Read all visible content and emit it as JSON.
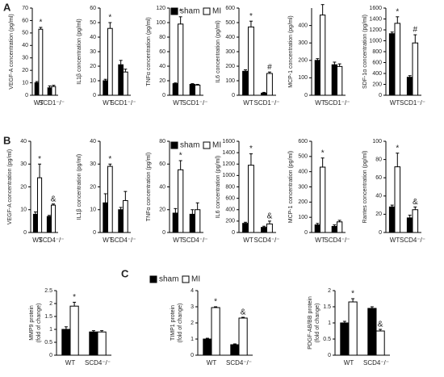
{
  "panel_labels": [
    "A",
    "B",
    "C"
  ],
  "legends": [
    [
      {
        "name": "sham",
        "color": "#000000"
      },
      {
        "name": "MI",
        "color": "#ffffff"
      }
    ],
    [
      {
        "name": "sham",
        "color": "#000000"
      },
      {
        "name": "MI",
        "color": "#ffffff"
      }
    ],
    [
      {
        "name": "sham",
        "color": "#000000"
      },
      {
        "name": "MI",
        "color": "#ffffff"
      }
    ]
  ],
  "chart_data": [
    {
      "type": "bar",
      "ylabel": [
        "VEGF-A concentration (pg/ml)"
      ],
      "categories": [
        "WT",
        "SCD1⁻/⁻"
      ],
      "ylim": [
        0,
        70
      ],
      "yticks": [
        0,
        10,
        20,
        30,
        40,
        50,
        60,
        70
      ],
      "series": [
        {
          "color": "#000000",
          "values": [
            10,
            6
          ],
          "errors": [
            1,
            1.5
          ]
        },
        {
          "color": "#ffffff",
          "values": [
            53,
            7
          ],
          "errors": [
            1.5,
            1
          ]
        }
      ],
      "annotations": [
        {
          "text": "*",
          "series": 1,
          "index": 0
        }
      ]
    },
    {
      "type": "bar",
      "ylabel": [
        "IL1β concentration (pg/ml)"
      ],
      "categories": [
        "WT",
        "SCD1⁻/⁻"
      ],
      "ylim": [
        0,
        60
      ],
      "yticks": [
        0,
        10,
        20,
        30,
        40,
        50,
        60
      ],
      "series": [
        {
          "color": "#000000",
          "values": [
            10,
            21
          ],
          "errors": [
            1,
            3
          ]
        },
        {
          "color": "#ffffff",
          "values": [
            46,
            16
          ],
          "errors": [
            4,
            2
          ]
        }
      ],
      "annotations": [
        {
          "text": "*",
          "series": 1,
          "index": 0
        }
      ]
    },
    {
      "type": "bar",
      "ylabel": [
        "TNFα concentration (pg/ml)"
      ],
      "categories": [
        "WT",
        "SCD1⁻/⁻"
      ],
      "ylim": [
        0,
        120
      ],
      "yticks": [
        0,
        20,
        40,
        60,
        80,
        100,
        120
      ],
      "series": [
        {
          "color": "#000000",
          "values": [
            16,
            15
          ],
          "errors": [
            1,
            1
          ]
        },
        {
          "color": "#ffffff",
          "values": [
            98,
            14
          ],
          "errors": [
            10,
            1
          ]
        }
      ],
      "annotations": [
        {
          "text": "*",
          "series": 1,
          "index": 0
        }
      ]
    },
    {
      "type": "bar",
      "ylabel": [
        "IL6 concentration (pg/ml)"
      ],
      "categories": [
        "WT",
        "SCD1⁻/⁻"
      ],
      "ylim": [
        0,
        600
      ],
      "yticks": [
        0,
        100,
        200,
        300,
        400,
        500,
        600
      ],
      "series": [
        {
          "color": "#000000",
          "values": [
            165,
            15
          ],
          "errors": [
            10,
            5
          ]
        },
        {
          "color": "#ffffff",
          "values": [
            470,
            150
          ],
          "errors": [
            40,
            10
          ]
        }
      ],
      "annotations": [
        {
          "text": "*",
          "series": 1,
          "index": 0
        },
        {
          "text": "#",
          "series": 1,
          "index": 1
        }
      ]
    },
    {
      "type": "bar",
      "ylabel": [
        "MCP-1 concentration (pg/ml)"
      ],
      "categories": [
        "WT",
        "SCD1⁻/⁻"
      ],
      "ylim": [
        0,
        500
      ],
      "yticks": [
        0,
        100,
        200,
        300,
        400
      ],
      "series": [
        {
          "color": "#000000",
          "values": [
            200,
            175
          ],
          "errors": [
            10,
            15
          ]
        },
        {
          "color": "#ffffff",
          "values": [
            460,
            165
          ],
          "errors": [
            60,
            15
          ]
        }
      ],
      "annotations": [
        {
          "text": "*",
          "series": 1,
          "index": 0
        }
      ]
    },
    {
      "type": "bar",
      "ylabel": [
        "SDF-1α concentration (pg/ml)"
      ],
      "categories": [
        "WT",
        "SCD1⁻/⁻"
      ],
      "ylim": [
        0,
        1600
      ],
      "yticks": [
        0,
        200,
        400,
        600,
        800,
        1000,
        1200,
        1400,
        1600
      ],
      "series": [
        {
          "color": "#000000",
          "values": [
            1130,
            330
          ],
          "errors": [
            30,
            30
          ]
        },
        {
          "color": "#ffffff",
          "values": [
            1320,
            960
          ],
          "errors": [
            120,
            150
          ]
        }
      ],
      "annotations": [
        {
          "text": "*",
          "series": 1,
          "index": 0
        },
        {
          "text": "#",
          "series": 1,
          "index": 1
        }
      ]
    },
    {
      "type": "bar",
      "ylabel": [
        "VEGF-A concentration (pg/ml)"
      ],
      "categories": [
        "WT",
        "SCD4⁻/⁻"
      ],
      "ylim": [
        0,
        40
      ],
      "yticks": [
        0,
        10,
        20,
        30,
        40
      ],
      "series": [
        {
          "color": "#000000",
          "values": [
            8,
            7
          ],
          "errors": [
            1,
            0.5
          ]
        },
        {
          "color": "#ffffff",
          "values": [
            24,
            12
          ],
          "errors": [
            6,
            0.5
          ]
        }
      ],
      "annotations": [
        {
          "text": "*",
          "series": 1,
          "index": 0
        },
        {
          "text": "&",
          "series": 1,
          "index": 1
        }
      ]
    },
    {
      "type": "bar",
      "ylabel": [
        "IL1β concentration (pg/ml)"
      ],
      "categories": [
        "WT",
        "SCD4⁻/⁻"
      ],
      "ylim": [
        0,
        40
      ],
      "yticks": [
        0,
        10,
        20,
        30,
        40
      ],
      "series": [
        {
          "color": "#000000",
          "values": [
            13,
            10
          ],
          "errors": [
            4,
            1
          ]
        },
        {
          "color": "#ffffff",
          "values": [
            29,
            14
          ],
          "errors": [
            1,
            4
          ]
        }
      ],
      "annotations": [
        {
          "text": "*",
          "series": 1,
          "index": 0
        }
      ]
    },
    {
      "type": "bar",
      "ylabel": [
        "TNFα concentration (pg/ml)"
      ],
      "categories": [
        "WT",
        "SCD4⁻/⁻"
      ],
      "ylim": [
        0,
        80
      ],
      "yticks": [
        0,
        20,
        40,
        60,
        80
      ],
      "series": [
        {
          "color": "#000000",
          "values": [
            17,
            16
          ],
          "errors": [
            4,
            4
          ]
        },
        {
          "color": "#ffffff",
          "values": [
            55,
            20
          ],
          "errors": [
            8,
            6
          ]
        }
      ],
      "annotations": [
        {
          "text": "*",
          "series": 1,
          "index": 0
        }
      ]
    },
    {
      "type": "bar",
      "ylabel": [
        "IL6 concentration (pg/ml)"
      ],
      "categories": [
        "WT",
        "SCD4⁻/⁻"
      ],
      "ylim": [
        0,
        1600
      ],
      "yticks": [
        0,
        200,
        400,
        600,
        800,
        1000,
        1200,
        1400,
        1600
      ],
      "series": [
        {
          "color": "#000000",
          "values": [
            160,
            90
          ],
          "errors": [
            20,
            20
          ]
        },
        {
          "color": "#ffffff",
          "values": [
            1180,
            150
          ],
          "errors": [
            200,
            50
          ]
        }
      ],
      "annotations": [
        {
          "text": "*",
          "series": 1,
          "index": 0
        },
        {
          "text": "&",
          "series": 1,
          "index": 1
        }
      ]
    },
    {
      "type": "bar",
      "ylabel": [
        "MCP-1 concentration (pg/ml)"
      ],
      "categories": [
        "WT",
        "SCD4⁻/⁻"
      ],
      "ylim": [
        0,
        600
      ],
      "yticks": [
        0,
        100,
        200,
        300,
        400,
        500,
        600
      ],
      "series": [
        {
          "color": "#000000",
          "values": [
            50,
            40
          ],
          "errors": [
            10,
            10
          ]
        },
        {
          "color": "#ffffff",
          "values": [
            430,
            70
          ],
          "errors": [
            60,
            10
          ]
        }
      ],
      "annotations": [
        {
          "text": "*",
          "series": 1,
          "index": 0
        }
      ]
    },
    {
      "type": "bar",
      "ylabel": [
        "Rantes concentration (pg/ml)"
      ],
      "categories": [
        "WT",
        "SCD4⁻/⁻"
      ],
      "ylim": [
        0,
        100
      ],
      "yticks": [
        0,
        20,
        40,
        60,
        80,
        100
      ],
      "series": [
        {
          "color": "#000000",
          "values": [
            28,
            16
          ],
          "errors": [
            2,
            3
          ]
        },
        {
          "color": "#ffffff",
          "values": [
            72,
            25
          ],
          "errors": [
            15,
            3
          ]
        }
      ],
      "annotations": [
        {
          "text": "*",
          "series": 1,
          "index": 0
        },
        {
          "text": "&",
          "series": 1,
          "index": 1
        }
      ]
    },
    {
      "type": "bar",
      "ylabel": [
        "MMP9 protein",
        "(fold of change)"
      ],
      "categories": [
        "WT",
        "SCD4⁻/⁻"
      ],
      "ylim": [
        0,
        2.5
      ],
      "yticks": [
        0,
        0.5,
        1,
        1.5,
        2,
        2.5
      ],
      "series": [
        {
          "color": "#000000",
          "values": [
            1,
            0.9
          ],
          "errors": [
            0.1,
            0.05
          ]
        },
        {
          "color": "#ffffff",
          "values": [
            1.9,
            0.9
          ],
          "errors": [
            0.15,
            0.05
          ]
        }
      ],
      "annotations": [
        {
          "text": "*",
          "series": 1,
          "index": 0
        }
      ]
    },
    {
      "type": "bar",
      "ylabel": [
        "TIMP1 protein",
        "(fold of change)"
      ],
      "categories": [
        "WT",
        "SCD4⁻/⁻"
      ],
      "ylim": [
        0,
        4
      ],
      "yticks": [
        0,
        1,
        2,
        3,
        4
      ],
      "series": [
        {
          "color": "#000000",
          "values": [
            1,
            0.65
          ],
          "errors": [
            0.05,
            0.05
          ]
        },
        {
          "color": "#ffffff",
          "values": [
            2.95,
            2.3
          ],
          "errors": [
            0.05,
            0.05
          ]
        }
      ],
      "annotations": [
        {
          "text": "*",
          "series": 1,
          "index": 0
        },
        {
          "text": "&",
          "series": 1,
          "index": 1
        }
      ]
    },
    {
      "type": "bar",
      "ylabel": [
        "PDGF-AB/BB protein",
        "(fold of change)"
      ],
      "categories": [
        "WT",
        "SCD4⁻/⁻"
      ],
      "ylim": [
        0,
        2
      ],
      "yticks": [
        0,
        0.5,
        1,
        1.5,
        2
      ],
      "series": [
        {
          "color": "#000000",
          "values": [
            1,
            1.45
          ],
          "errors": [
            0.05,
            0.05
          ]
        },
        {
          "color": "#ffffff",
          "values": [
            1.65,
            0.75
          ],
          "errors": [
            0.1,
            0.05
          ]
        }
      ],
      "annotations": [
        {
          "text": "*",
          "series": 1,
          "index": 0
        },
        {
          "text": "&",
          "series": 1,
          "index": 1
        }
      ]
    }
  ]
}
